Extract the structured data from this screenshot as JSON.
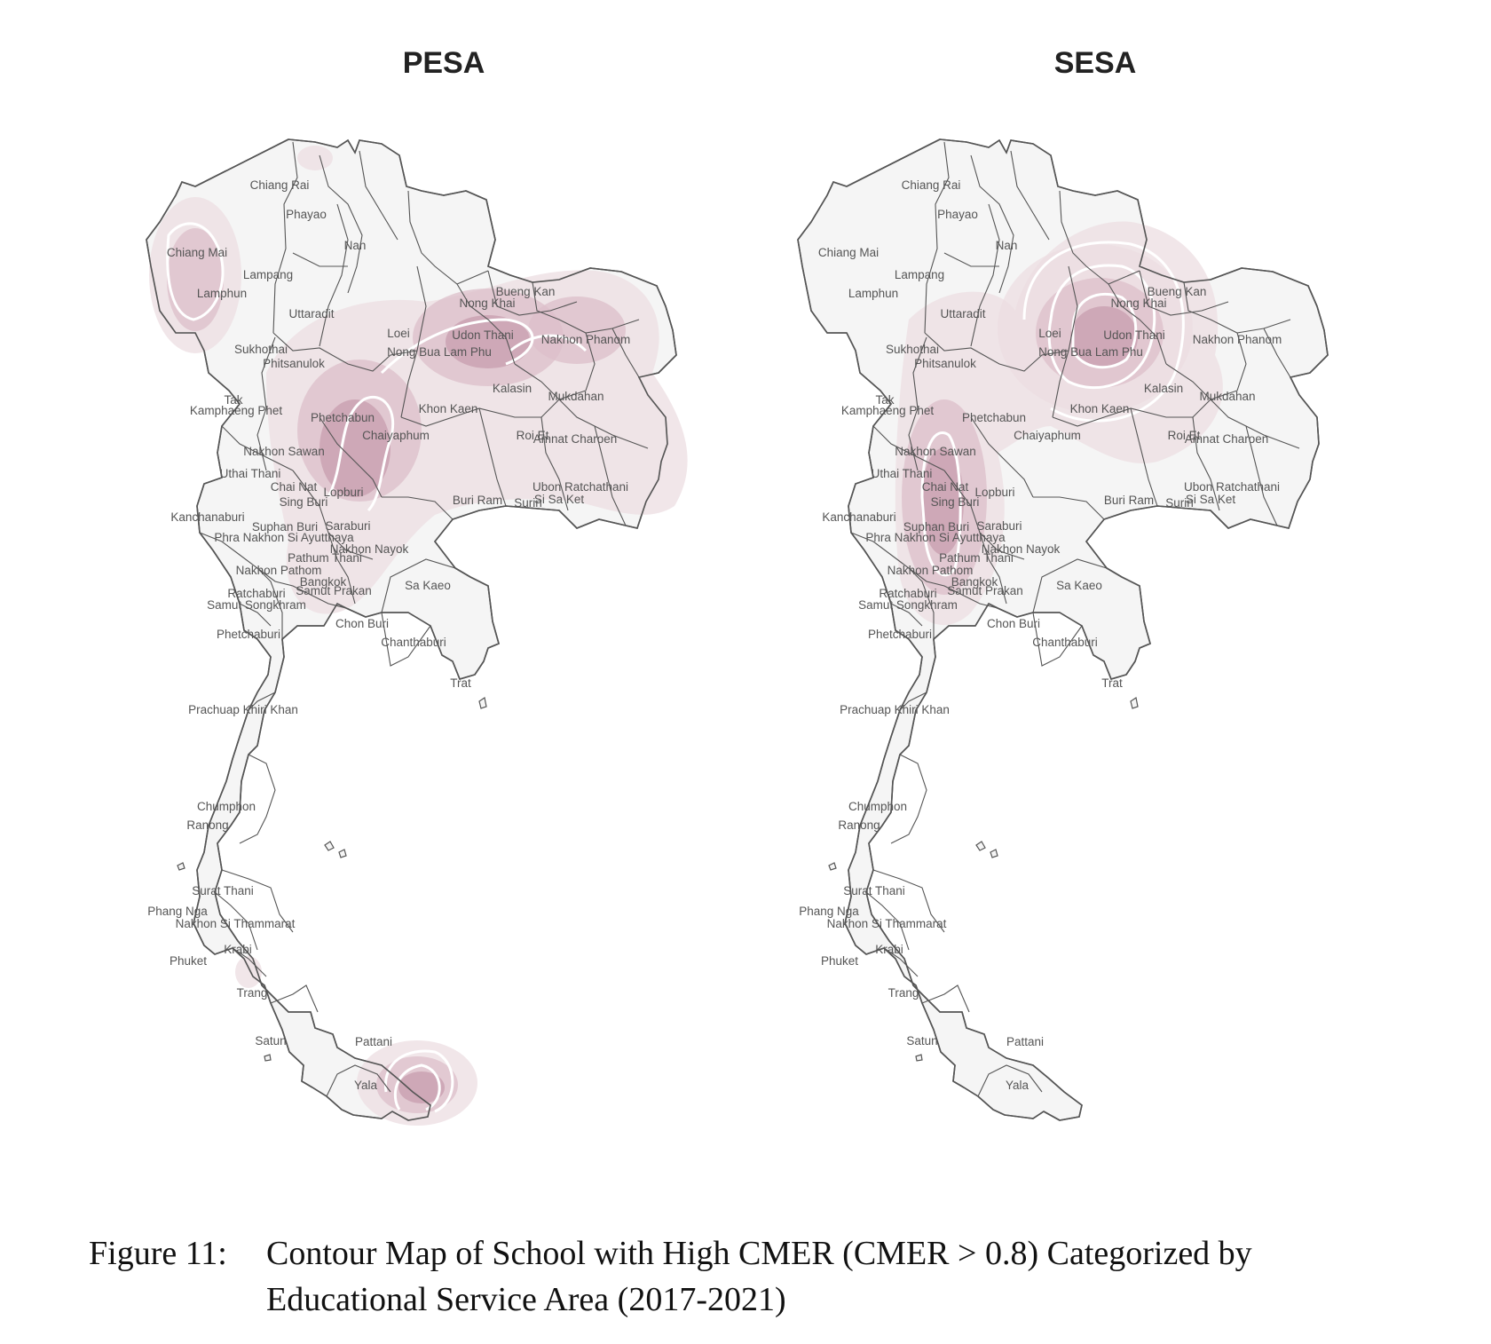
{
  "figure": {
    "caption_number": "Figure 11:",
    "caption_line1": "Contour Map of School with High CMER (CMER > 0.8) Categorized by",
    "caption_line2": "Educational Service Area (2017-2021)"
  },
  "colors": {
    "density_low": "#ecdde2",
    "density_mid": "#dcbfc9",
    "density_high": "#c9a0b0",
    "province_fill": "#f5f5f5",
    "border": "#555555",
    "contour_line": "#ffffff"
  },
  "maps": [
    {
      "title": "PESA",
      "hotspots": [
        "Chiang Mai",
        "Udon Thani",
        "Phetchabun",
        "Nakhon Sawan",
        "Pattani",
        "Yala"
      ]
    },
    {
      "title": "SESA",
      "hotspots": [
        "Nong Khai",
        "Udon Thani",
        "Nakhon Sawan",
        "Suphan Buri"
      ]
    }
  ],
  "provinces": [
    {
      "name": "Chiang Rai"
    },
    {
      "name": "Phayao"
    },
    {
      "name": "Nan"
    },
    {
      "name": "Chiang Mai"
    },
    {
      "name": "Lampang"
    },
    {
      "name": "Lamphun"
    },
    {
      "name": "Uttaradit"
    },
    {
      "name": "Sukhothai"
    },
    {
      "name": "Phitsanulok"
    },
    {
      "name": "Loei"
    },
    {
      "name": "Nong Khai"
    },
    {
      "name": "Bueng Kan"
    },
    {
      "name": "Udon Thani"
    },
    {
      "name": "Nong Bua Lam Phu"
    },
    {
      "name": "Nakhon Phanom"
    },
    {
      "name": "Kalasin"
    },
    {
      "name": "Mukdahan"
    },
    {
      "name": "Tak"
    },
    {
      "name": "Kamphaeng Phet"
    },
    {
      "name": "Phetchabun"
    },
    {
      "name": "Khon Kaen"
    },
    {
      "name": "Chaiyaphum"
    },
    {
      "name": "Roi Et"
    },
    {
      "name": "Amnat Charoen"
    },
    {
      "name": "Nakhon Sawan"
    },
    {
      "name": "Uthai Thani"
    },
    {
      "name": "Chai Nat"
    },
    {
      "name": "Lopburi"
    },
    {
      "name": "Sing Buri"
    },
    {
      "name": "Ubon Ratchathani"
    },
    {
      "name": "Buri Ram"
    },
    {
      "name": "Surin"
    },
    {
      "name": "Si Sa Ket"
    },
    {
      "name": "Kanchanaburi"
    },
    {
      "name": "Suphan Buri"
    },
    {
      "name": "Saraburi"
    },
    {
      "name": "Phra Nakhon Si Ayutthaya"
    },
    {
      "name": "Nakhon Nayok"
    },
    {
      "name": "Pathum Thani"
    },
    {
      "name": "Nakhon Pathom"
    },
    {
      "name": "Bangkok"
    },
    {
      "name": "Ratchaburi"
    },
    {
      "name": "Samut Prakan"
    },
    {
      "name": "Sa Kaeo"
    },
    {
      "name": "Samut Songkhram"
    },
    {
      "name": "Chon Buri"
    },
    {
      "name": "Chanthaburi"
    },
    {
      "name": "Phetchaburi"
    },
    {
      "name": "Trat"
    },
    {
      "name": "Prachuap Khiri Khan"
    },
    {
      "name": "Chumphon"
    },
    {
      "name": "Ranong"
    },
    {
      "name": "Surat Thani"
    },
    {
      "name": "Phang Nga"
    },
    {
      "name": "Nakhon Si Thammarat"
    },
    {
      "name": "Krabi"
    },
    {
      "name": "Phuket"
    },
    {
      "name": "Trang"
    },
    {
      "name": "Satun"
    },
    {
      "name": "Pattani"
    },
    {
      "name": "Yala"
    }
  ]
}
